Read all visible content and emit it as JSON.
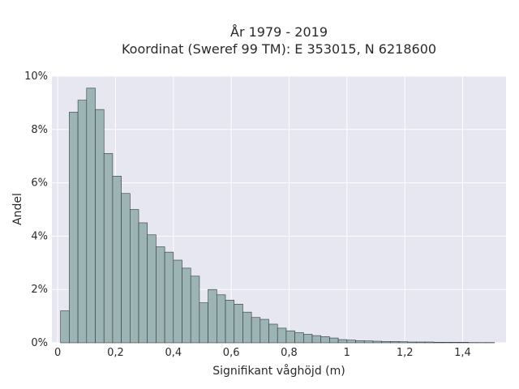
{
  "chart_data": {
    "type": "bar",
    "title_lines": [
      "År 1979 - 2019",
      "Koordinat (Sweref 99 TM): E 353015, N 6218600"
    ],
    "xlabel": "Signifikant våghöjd (m)",
    "ylabel": "Andel",
    "xlim": [
      -0.02,
      1.55
    ],
    "ylim": [
      0,
      10
    ],
    "x_ticks": [
      0,
      0.2,
      0.4,
      0.6,
      0.8,
      1,
      1.2,
      1.4
    ],
    "x_tick_labels": [
      "0",
      "0,2",
      "0,4",
      "0,6",
      "0,8",
      "1",
      "1,2",
      "1,4"
    ],
    "y_ticks": [
      0,
      2,
      4,
      6,
      8,
      10
    ],
    "y_tick_labels": [
      "0%",
      "2%",
      "4%",
      "6%",
      "8%",
      "10%"
    ],
    "grid": true,
    "bin_width": 0.03,
    "bin_start": 0.01,
    "values": [
      1.2,
      8.65,
      9.1,
      9.55,
      8.75,
      7.1,
      6.25,
      5.6,
      5.0,
      4.5,
      4.05,
      3.6,
      3.4,
      3.1,
      2.8,
      2.5,
      1.5,
      2.0,
      1.8,
      1.6,
      1.45,
      1.15,
      0.95,
      0.88,
      0.7,
      0.55,
      0.45,
      0.38,
      0.32,
      0.27,
      0.23,
      0.18,
      0.12,
      0.1,
      0.08,
      0.07,
      0.06,
      0.05,
      0.05,
      0.04,
      0.03,
      0.03,
      0.03,
      0.02,
      0.02,
      0.02,
      0.02,
      0.01,
      0.01,
      0.01
    ],
    "colors": {
      "plot_bg": "#e6e7f0",
      "grid": "#ffffff",
      "bar_fill": "#9db4b4",
      "bar_stroke": "#2f3a3a"
    }
  }
}
